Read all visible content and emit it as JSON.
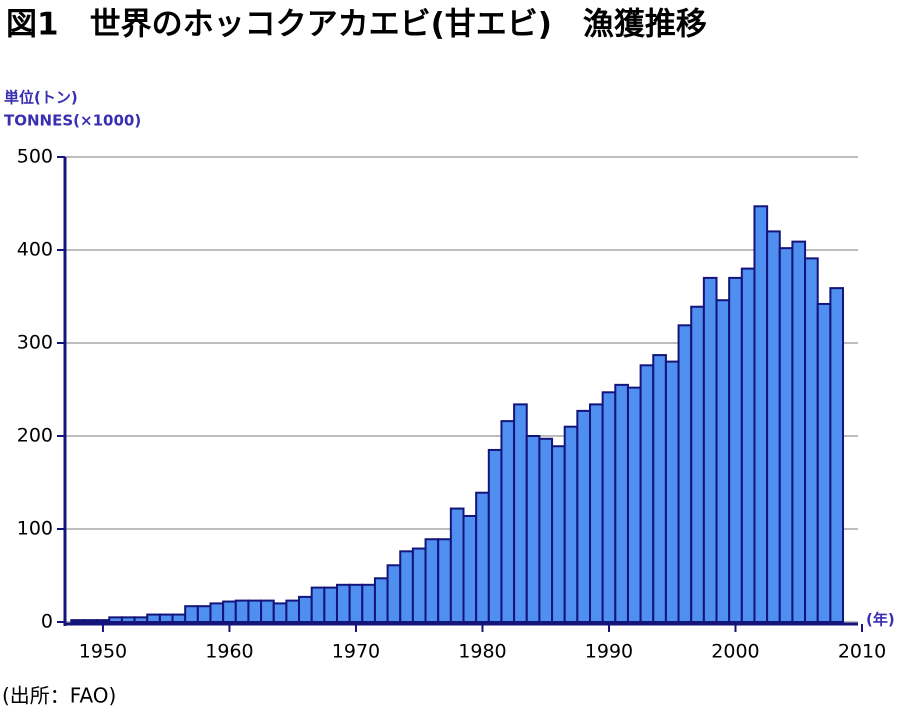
{
  "chart_data": {
    "type": "bar",
    "title": "図1　世界のホッコクアカエビ(甘エビ)　漁獲推移",
    "y_unit_label": "単位(トン)",
    "y_label": "TONNES(×1000)",
    "x_unit_label": "(年)",
    "source": "(出所：FAO)",
    "x": [
      1948,
      1949,
      1950,
      1951,
      1952,
      1953,
      1954,
      1955,
      1956,
      1957,
      1958,
      1959,
      1960,
      1961,
      1962,
      1963,
      1964,
      1965,
      1966,
      1967,
      1968,
      1969,
      1970,
      1971,
      1972,
      1973,
      1974,
      1975,
      1976,
      1977,
      1978,
      1979,
      1980,
      1981,
      1982,
      1983,
      1984,
      1985,
      1986,
      1987,
      1988,
      1989,
      1990,
      1991,
      1992,
      1993,
      1994,
      1995,
      1996,
      1997,
      1998,
      1999,
      2000,
      2001,
      2002,
      2003,
      2004,
      2005,
      2006,
      2007,
      2008
    ],
    "values": [
      2,
      2,
      2,
      5,
      5,
      5,
      8,
      8,
      8,
      17,
      17,
      20,
      22,
      23,
      23,
      23,
      20,
      23,
      27,
      37,
      37,
      40,
      40,
      40,
      47,
      61,
      76,
      79,
      89,
      89,
      122,
      114,
      139,
      185,
      216,
      234,
      200,
      197,
      189,
      210,
      227,
      234,
      247,
      255,
      252,
      276,
      287,
      280,
      319,
      339,
      370,
      346,
      370,
      380,
      447,
      420,
      402,
      409,
      391,
      342,
      359
    ],
    "color": "#4f8ff0",
    "edge_color": "#14147a",
    "xlim": [
      1947,
      2010
    ],
    "xticks": [
      1950,
      1960,
      1970,
      1980,
      1990,
      2000,
      2010
    ],
    "ylim": [
      0,
      500
    ],
    "yticks": [
      0,
      100,
      200,
      300,
      400,
      500
    ],
    "grid": true
  }
}
